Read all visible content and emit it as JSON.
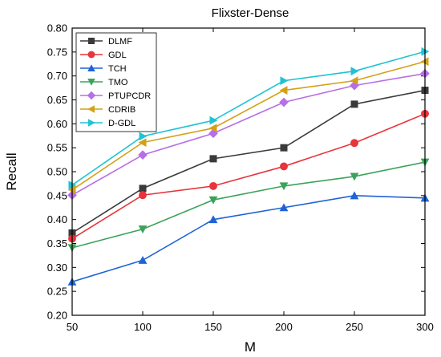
{
  "chart_data": {
    "type": "line",
    "title": "Flixster-Dense",
    "xlabel": "M",
    "ylabel": "Recall",
    "x": [
      50,
      100,
      150,
      200,
      250,
      300
    ],
    "xlim": [
      50,
      300
    ],
    "ylim": [
      0.2,
      0.8
    ],
    "xticks": [
      "50",
      "100",
      "150",
      "200",
      "250",
      "300"
    ],
    "yticks": [
      "0.20",
      "0.25",
      "0.30",
      "0.35",
      "0.40",
      "0.45",
      "0.50",
      "0.55",
      "0.60",
      "0.65",
      "0.70",
      "0.75",
      "0.80"
    ],
    "grid": false,
    "legend_position": "top-left",
    "series": [
      {
        "name": "DLMF",
        "color": "#3a3a3a",
        "marker": "square",
        "values": [
          0.372,
          0.465,
          0.527,
          0.55,
          0.641,
          0.67
        ]
      },
      {
        "name": "GDL",
        "color": "#e8343a",
        "marker": "circle",
        "values": [
          0.36,
          0.451,
          0.47,
          0.511,
          0.56,
          0.621
        ]
      },
      {
        "name": "TCH",
        "color": "#1f63d6",
        "marker": "triangle-up",
        "values": [
          0.27,
          0.315,
          0.4,
          0.425,
          0.45,
          0.445
        ]
      },
      {
        "name": "TMO",
        "color": "#3aa35a",
        "marker": "triangle-down",
        "values": [
          0.341,
          0.38,
          0.441,
          0.47,
          0.49,
          0.52
        ]
      },
      {
        "name": "PTUPCDR",
        "color": "#b76ee8",
        "marker": "diamond",
        "values": [
          0.451,
          0.535,
          0.58,
          0.645,
          0.68,
          0.705
        ]
      },
      {
        "name": "CDRIB",
        "color": "#d4a017",
        "marker": "triangle-left",
        "values": [
          0.462,
          0.561,
          0.591,
          0.67,
          0.69,
          0.73
        ]
      },
      {
        "name": "D-GDL",
        "color": "#1fc3d3",
        "marker": "triangle-right",
        "values": [
          0.472,
          0.574,
          0.607,
          0.69,
          0.71,
          0.751
        ]
      }
    ]
  }
}
